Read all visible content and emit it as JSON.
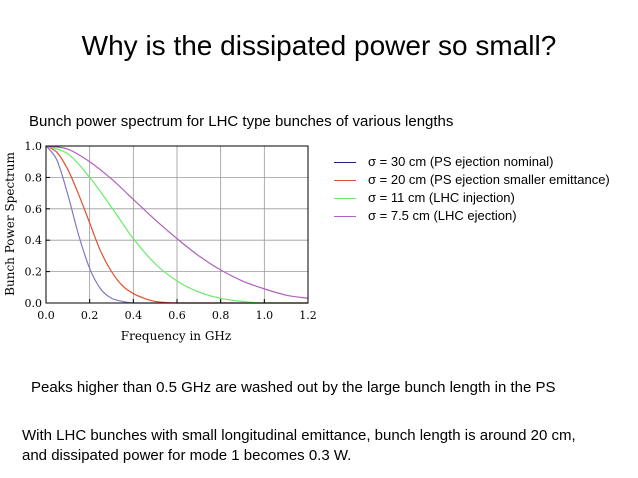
{
  "slide": {
    "title": "Why is the dissipated power so small?",
    "subtitle": "Bunch power spectrum for LHC type bunches of various lengths",
    "note1": "Peaks higher than 0.5 GHz are washed out by the large bunch length in the PS",
    "note2_line1": "With LHC bunches with small longitudinal emittance, bunch length is around 20 cm,",
    "note2_line2": "and dissipated power for mode 1 becomes 0.3 W."
  },
  "chart_data": {
    "type": "line",
    "title": "",
    "xlabel": "Frequency in GHz",
    "ylabel": "Bunch Power Spectrum",
    "xlim": [
      0,
      1.2
    ],
    "ylim": [
      0,
      1.0
    ],
    "xticks": [
      "0.0",
      "0.2",
      "0.4",
      "0.6",
      "0.8",
      "1.0",
      "1.2"
    ],
    "yticks": [
      "0.0",
      "0.2",
      "0.4",
      "0.6",
      "0.8",
      "1.0"
    ],
    "grid": true,
    "legend_position": "right",
    "series": [
      {
        "name": "σ = 30 cm (PS ejection nominal)",
        "color": "#1f1f8f",
        "legend_color": "#1f1f8f",
        "plot_color": "#7b7bc4",
        "sigma_cm": 30,
        "x": [
          0,
          0.05,
          0.1,
          0.15,
          0.2,
          0.25,
          0.3,
          0.35,
          0.4,
          0.5,
          0.6,
          0.8,
          1.0,
          1.2
        ],
        "y": [
          1.0,
          0.91,
          0.69,
          0.43,
          0.22,
          0.09,
          0.03,
          0.01,
          0.0,
          0.0,
          0.0,
          0.0,
          0.0,
          0.0
        ]
      },
      {
        "name": "σ = 20 cm (PS ejection smaller emittance)",
        "color": "#e0502a",
        "legend_color": "#e0502a",
        "plot_color": "#e0502a",
        "sigma_cm": 20,
        "x": [
          0,
          0.05,
          0.1,
          0.15,
          0.2,
          0.25,
          0.3,
          0.35,
          0.4,
          0.45,
          0.5,
          0.6,
          0.8,
          1.0,
          1.2
        ],
        "y": [
          1.0,
          0.96,
          0.85,
          0.69,
          0.51,
          0.33,
          0.2,
          0.11,
          0.06,
          0.03,
          0.01,
          0.0,
          0.0,
          0.0,
          0.0
        ]
      },
      {
        "name": "σ = 11 cm (LHC injection)",
        "color": "#66ee66",
        "legend_color": "#66ee66",
        "plot_color": "#66ee66",
        "sigma_cm": 11,
        "x": [
          0,
          0.1,
          0.2,
          0.3,
          0.4,
          0.5,
          0.6,
          0.7,
          0.8,
          0.9,
          1.0,
          1.2
        ],
        "y": [
          1.0,
          0.95,
          0.8,
          0.61,
          0.41,
          0.25,
          0.14,
          0.07,
          0.03,
          0.01,
          0.0,
          0.0
        ]
      },
      {
        "name": "σ = 7.5 cm (LHC ejection)",
        "color": "#b060c0",
        "legend_color": "#b060c0",
        "plot_color": "#b060c0",
        "sigma_cm": 7.5,
        "x": [
          0,
          0.1,
          0.2,
          0.3,
          0.4,
          0.5,
          0.6,
          0.7,
          0.8,
          0.9,
          1.0,
          1.1,
          1.2
        ],
        "y": [
          1.0,
          0.98,
          0.9,
          0.79,
          0.66,
          0.53,
          0.41,
          0.3,
          0.21,
          0.14,
          0.09,
          0.05,
          0.03
        ]
      }
    ]
  }
}
